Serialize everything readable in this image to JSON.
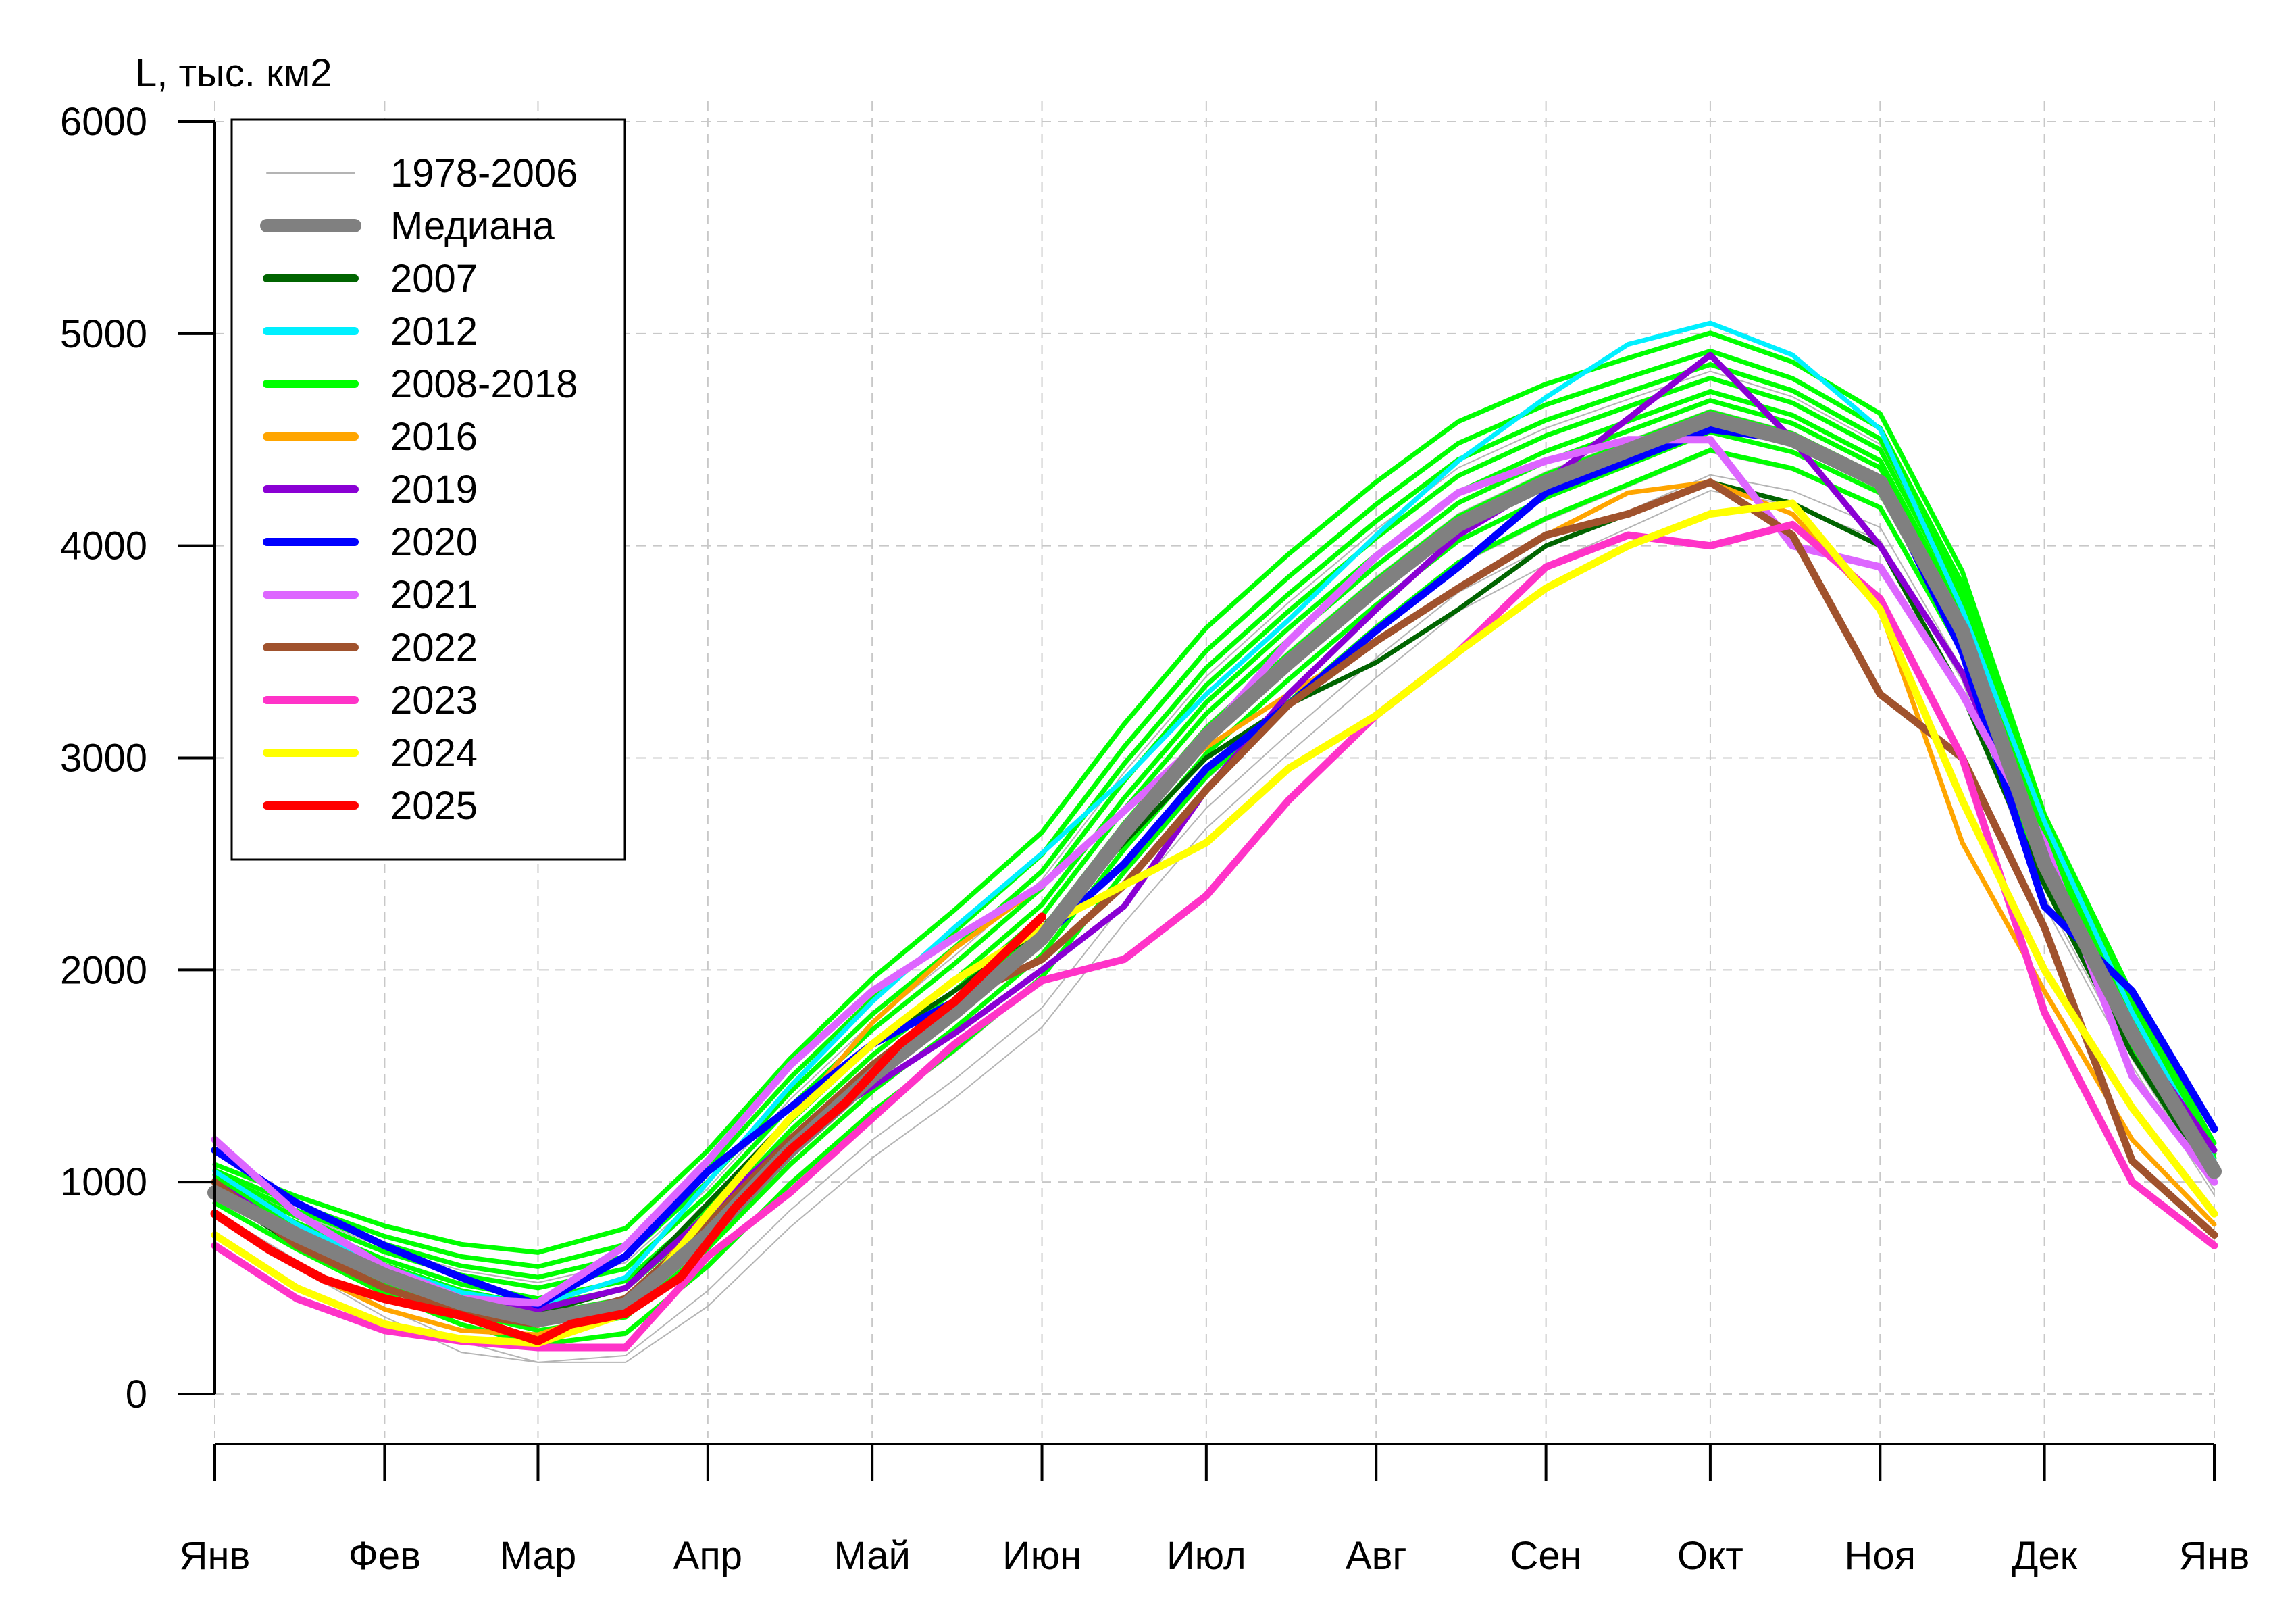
{
  "chart_data": {
    "type": "line",
    "ylabel": "L, тыс. км2",
    "ylim": [
      0,
      6000
    ],
    "yticks": [
      0,
      1000,
      2000,
      3000,
      4000,
      5000,
      6000
    ],
    "xlim": [
      0,
      365
    ],
    "month_labels": [
      "Янв",
      "Фев",
      "Мар",
      "Апр",
      "Май",
      "Июн",
      "Июл",
      "Авг",
      "Сен",
      "Окт",
      "Ноя",
      "Дек",
      "Янв"
    ],
    "month_starts": [
      0,
      31,
      59,
      90,
      120,
      151,
      181,
      212,
      243,
      273,
      304,
      334,
      365
    ],
    "grid": true,
    "legend_position": "top-left",
    "colors": {
      "hist": "#b4b4b4",
      "median": "#808080",
      "y2007": "#006400",
      "y2012": "#00f0ff",
      "y2008_2018": "#00ff00",
      "y2016": "#ffa500",
      "y2019": "#8a00d4",
      "y2020": "#0000ff",
      "y2021": "#dd66ff",
      "y2022": "#a0522d",
      "y2023": "#ff33c8",
      "y2024": "#ffff00",
      "y2025": "#ff0000"
    },
    "legend": [
      {
        "label": "1978-2006",
        "color": "#b4b4b4",
        "width": 2
      },
      {
        "label": "Медиана",
        "color": "#808080",
        "width": 20
      },
      {
        "label": "2007",
        "color": "#006400",
        "width": 12
      },
      {
        "label": "2012",
        "color": "#00f0ff",
        "width": 12
      },
      {
        "label": "2008-2018",
        "color": "#00ff00",
        "width": 12
      },
      {
        "label": "2016",
        "color": "#ffa500",
        "width": 12
      },
      {
        "label": "2019",
        "color": "#8a00d4",
        "width": 12
      },
      {
        "label": "2020",
        "color": "#0000ff",
        "width": 12
      },
      {
        "label": "2021",
        "color": "#dd66ff",
        "width": 12
      },
      {
        "label": "2022",
        "color": "#a0522d",
        "width": 12
      },
      {
        "label": "2023",
        "color": "#ff33c8",
        "width": 12
      },
      {
        "label": "2024",
        "color": "#ffff00",
        "width": 12
      },
      {
        "label": "2025",
        "color": "#ff0000",
        "width": 12
      }
    ],
    "series": [
      {
        "key": "hist",
        "color": "#b4b4b4",
        "width": 2,
        "offsets": [
          -250,
          -150,
          -60,
          40,
          120,
          210,
          300,
          -320
        ]
      },
      {
        "key": "y2008_2018",
        "color": "#00ff00",
        "width": 7,
        "offsets": [
          300,
          180,
          80,
          -60,
          380,
          120,
          240,
          30,
          -140
        ]
      },
      {
        "name": "2007",
        "color": "#006400",
        "width": 7,
        "x": [
          0,
          15,
          31,
          45,
          59,
          75,
          90,
          105,
          120,
          135,
          151,
          166,
          181,
          196,
          212,
          227,
          243,
          258,
          273,
          288,
          304,
          319,
          334,
          350,
          365
        ],
        "y": [
          950,
          700,
          550,
          420,
          380,
          500,
          900,
          1300,
          1650,
          1900,
          2200,
          2600,
          3000,
          3250,
          3450,
          3700,
          4000,
          4150,
          4300,
          4200,
          4000,
          3300,
          2400,
          1600,
          1000
        ]
      },
      {
        "name": "2012",
        "color": "#00f0ff",
        "width": 7,
        "x": [
          0,
          15,
          31,
          45,
          59,
          75,
          90,
          105,
          120,
          135,
          151,
          166,
          181,
          196,
          212,
          227,
          243,
          258,
          273,
          288,
          304,
          319,
          334,
          350,
          365
        ],
        "y": [
          1050,
          800,
          600,
          480,
          420,
          550,
          1000,
          1450,
          1850,
          2200,
          2550,
          2900,
          3300,
          3650,
          4050,
          4400,
          4700,
          4950,
          5050,
          4900,
          4550,
          3700,
          2700,
          1800,
          1100
        ]
      },
      {
        "name": "2016",
        "color": "#ffa500",
        "width": 7,
        "x": [
          0,
          15,
          31,
          45,
          59,
          75,
          90,
          105,
          120,
          135,
          151,
          166,
          181,
          196,
          212,
          227,
          243,
          258,
          273,
          288,
          304,
          319,
          334,
          350,
          365
        ],
        "y": [
          850,
          600,
          400,
          300,
          280,
          420,
          850,
          1300,
          1750,
          2100,
          2400,
          2750,
          3050,
          3300,
          3550,
          3800,
          4050,
          4250,
          4300,
          4150,
          3700,
          2600,
          1900,
          1200,
          800
        ]
      },
      {
        "name": "2019",
        "color": "#8a00d4",
        "width": 9,
        "x": [
          0,
          15,
          31,
          45,
          59,
          75,
          90,
          105,
          120,
          135,
          151,
          166,
          181,
          196,
          212,
          227,
          243,
          258,
          273,
          288,
          304,
          319,
          334,
          350,
          365
        ],
        "y": [
          1000,
          750,
          550,
          430,
          400,
          500,
          850,
          1200,
          1450,
          1700,
          2000,
          2300,
          2850,
          3300,
          3700,
          4050,
          4300,
          4600,
          4900,
          4500,
          4000,
          3400,
          2500,
          1700,
          1150
        ]
      },
      {
        "name": "2020",
        "color": "#0000ff",
        "width": 11,
        "x": [
          0,
          15,
          31,
          45,
          59,
          75,
          90,
          105,
          120,
          135,
          151,
          166,
          181,
          196,
          212,
          227,
          243,
          258,
          273,
          288,
          304,
          319,
          334,
          350,
          365
        ],
        "y": [
          1150,
          900,
          700,
          550,
          420,
          650,
          1050,
          1350,
          1650,
          1850,
          2150,
          2500,
          2950,
          3250,
          3600,
          3900,
          4250,
          4400,
          4550,
          4500,
          4300,
          3500,
          2300,
          1900,
          1250
        ]
      },
      {
        "name": "2021",
        "color": "#dd66ff",
        "width": 11,
        "x": [
          0,
          15,
          31,
          45,
          59,
          75,
          90,
          105,
          120,
          135,
          151,
          166,
          181,
          196,
          212,
          227,
          243,
          258,
          273,
          288,
          304,
          319,
          334,
          350,
          365
        ],
        "y": [
          1200,
          850,
          600,
          450,
          430,
          700,
          1100,
          1550,
          1900,
          2150,
          2400,
          2750,
          3100,
          3550,
          3950,
          4250,
          4400,
          4500,
          4500,
          4000,
          3900,
          3300,
          2600,
          1500,
          1000
        ]
      },
      {
        "name": "2022",
        "color": "#a0522d",
        "width": 11,
        "x": [
          0,
          15,
          31,
          45,
          59,
          75,
          90,
          105,
          120,
          135,
          151,
          166,
          181,
          196,
          212,
          227,
          243,
          258,
          273,
          288,
          304,
          319,
          334,
          350,
          365
        ],
        "y": [
          1000,
          700,
          500,
          380,
          330,
          450,
          800,
          1200,
          1550,
          1850,
          2050,
          2400,
          2850,
          3250,
          3550,
          3800,
          4050,
          4150,
          4300,
          4050,
          3300,
          3000,
          2200,
          1100,
          750
        ]
      },
      {
        "name": "2023",
        "color": "#ff33c8",
        "width": 11,
        "x": [
          0,
          15,
          31,
          45,
          59,
          75,
          90,
          105,
          120,
          135,
          151,
          166,
          181,
          196,
          212,
          227,
          243,
          258,
          273,
          288,
          304,
          319,
          334,
          350,
          365
        ],
        "y": [
          700,
          450,
          300,
          250,
          220,
          220,
          650,
          950,
          1300,
          1650,
          1950,
          2050,
          2350,
          2800,
          3200,
          3500,
          3900,
          4050,
          4000,
          4100,
          3750,
          3000,
          1800,
          1000,
          700
        ]
      },
      {
        "name": "2024",
        "color": "#ffff00",
        "width": 11,
        "x": [
          0,
          15,
          31,
          45,
          59,
          75,
          90,
          105,
          120,
          135,
          151,
          166,
          181,
          196,
          212,
          227,
          243,
          258,
          273,
          288,
          304,
          319,
          334,
          350,
          365
        ],
        "y": [
          750,
          500,
          330,
          260,
          240,
          380,
          850,
          1300,
          1650,
          1950,
          2200,
          2400,
          2600,
          2950,
          3200,
          3500,
          3800,
          4000,
          4150,
          4200,
          3700,
          2800,
          2000,
          1350,
          850
        ]
      },
      {
        "name": "2025",
        "color": "#ff0000",
        "width": 13,
        "x": [
          0,
          10,
          20,
          31,
          45,
          59,
          65,
          75,
          85,
          95,
          105,
          115,
          125,
          135,
          145,
          151
        ],
        "y": [
          850,
          680,
          540,
          450,
          370,
          250,
          330,
          380,
          550,
          880,
          1150,
          1370,
          1650,
          1850,
          2100,
          2250
        ]
      },
      {
        "name": "Медиана",
        "color": "#808080",
        "width": 22,
        "x": [
          0,
          15,
          31,
          45,
          59,
          75,
          90,
          105,
          120,
          135,
          151,
          166,
          181,
          196,
          212,
          227,
          243,
          258,
          273,
          288,
          304,
          319,
          334,
          350,
          365
        ],
        "y": [
          950,
          750,
          560,
          430,
          350,
          420,
          750,
          1150,
          1500,
          1800,
          2150,
          2650,
          3100,
          3450,
          3800,
          4100,
          4300,
          4450,
          4600,
          4500,
          4300,
          3600,
          2500,
          1700,
          1050
        ]
      }
    ]
  }
}
